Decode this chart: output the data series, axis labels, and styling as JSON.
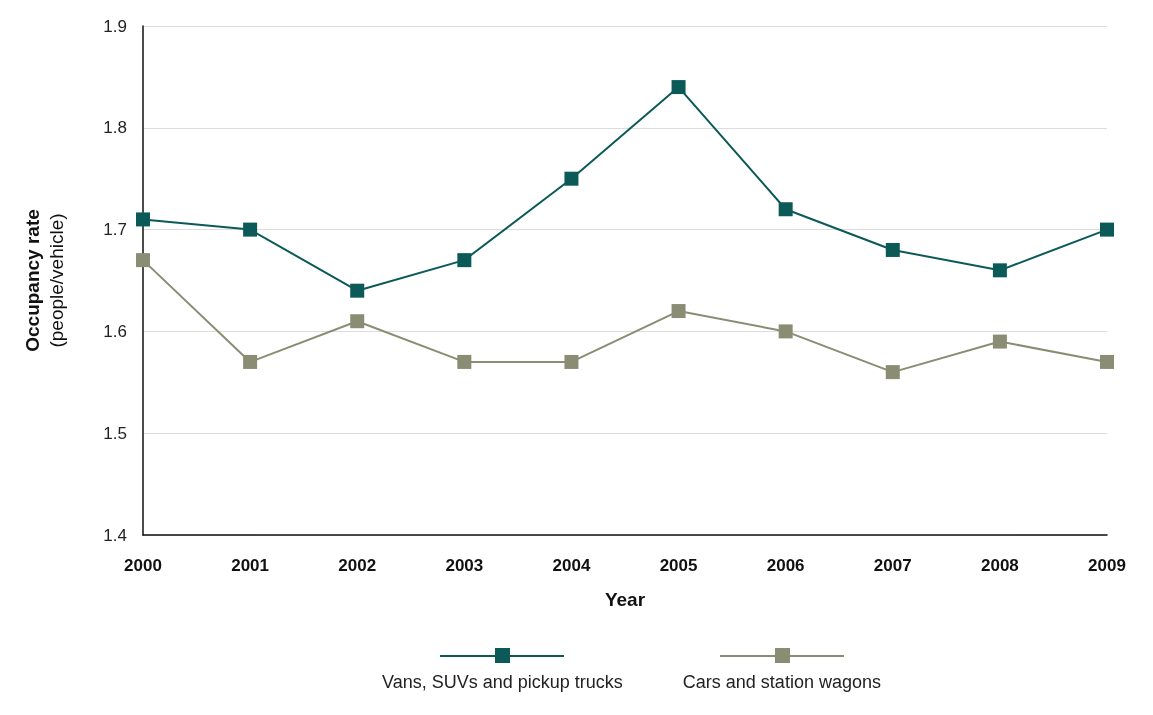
{
  "chart_data": {
    "type": "line",
    "xlabel": "Year",
    "ylabel": "Occupancy rate (people/vehicle)",
    "categories": [
      "2000",
      "2001",
      "2002",
      "2003",
      "2004",
      "2005",
      "2006",
      "2007",
      "2008",
      "2009"
    ],
    "series": [
      {
        "name": "Vans, SUVs and pickup trucks",
        "color": "#0b5a58",
        "values": [
          1.71,
          1.7,
          1.64,
          1.67,
          1.75,
          1.84,
          1.72,
          1.68,
          1.66,
          1.7
        ]
      },
      {
        "name": "Cars and station wagons",
        "color": "#8a8d73",
        "values": [
          1.67,
          1.57,
          1.61,
          1.57,
          1.57,
          1.62,
          1.6,
          1.56,
          1.59,
          1.57
        ]
      }
    ],
    "ylim": [
      1.4,
      1.9
    ],
    "yticks": [
      1.4,
      1.5,
      1.6,
      1.7,
      1.8,
      1.9
    ],
    "grid": "y",
    "legend": "bottom",
    "marker": "square",
    "line_style": "solid"
  }
}
